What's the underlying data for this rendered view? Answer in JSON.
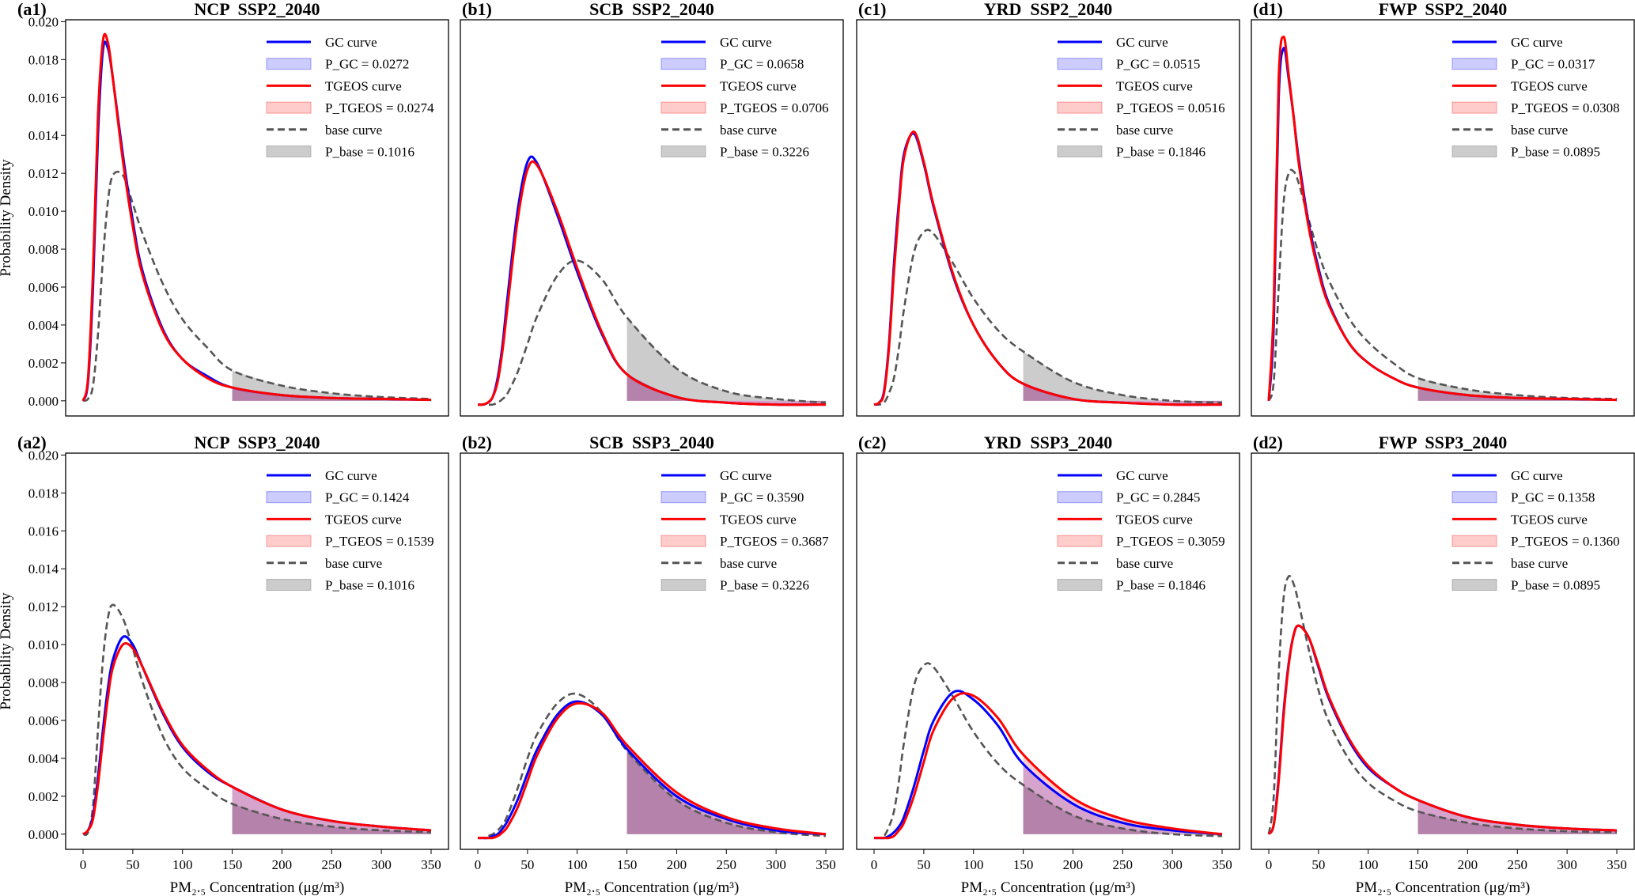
{
  "chart_data": [
    {
      "type": "line",
      "tag": "(a1)",
      "title": "NCP  SSP2_2040",
      "ylabel": "Probability Density",
      "x": [
        0,
        5,
        10,
        15,
        20,
        25,
        30,
        40,
        50,
        60,
        80,
        100,
        125,
        150,
        200,
        250,
        300,
        350
      ],
      "xlim": [
        -17.5,
        367.5
      ],
      "ylim": [
        -0.0008,
        0.0201
      ],
      "yticks": [
        {
          "value": 0,
          "label": "0.000"
        },
        {
          "value": 0.002,
          "label": "0.002"
        },
        {
          "value": 0.004,
          "label": "0.004"
        },
        {
          "value": 0.006,
          "label": "0.006"
        },
        {
          "value": 0.008,
          "label": "0.008"
        },
        {
          "value": 0.01,
          "label": "0.010"
        },
        {
          "value": 0.012,
          "label": "0.012"
        },
        {
          "value": 0.014,
          "label": "0.014"
        },
        {
          "value": 0.016,
          "label": "0.016"
        },
        {
          "value": 0.018,
          "label": "0.018"
        },
        {
          "value": 0.02,
          "label": "0.020"
        }
      ],
      "shade_xmin": 150,
      "series": [
        {
          "name": "GC curve",
          "area_label": "P_GC = 0.0272",
          "color": "#0000ff",
          "values": [
            0,
            0.001,
            0.006,
            0.014,
            0.0185,
            0.0186,
            0.017,
            0.013,
            0.0095,
            0.0068,
            0.0038,
            0.0022,
            0.0013,
            0.0007,
            0.0003,
            0.00015,
            0.0001,
            5e-05
          ]
        },
        {
          "name": "TGEOS curve",
          "area_label": "P_TGEOS = 0.0274",
          "color": "#ff0000",
          "values": [
            0,
            0.0012,
            0.0068,
            0.015,
            0.019,
            0.0189,
            0.017,
            0.0127,
            0.0092,
            0.0066,
            0.0037,
            0.0022,
            0.0012,
            0.0007,
            0.0003,
            0.00015,
            0.0001,
            5e-05
          ]
        },
        {
          "name": "base curve",
          "area_label": "P_base = 0.1016",
          "color": "#555555",
          "dashed": true,
          "values": [
            0,
            0.0001,
            0.0008,
            0.0035,
            0.0075,
            0.0105,
            0.0119,
            0.0119,
            0.0104,
            0.0088,
            0.0062,
            0.0043,
            0.0028,
            0.0016,
            0.0008,
            0.0004,
            0.0002,
            0.0001
          ]
        }
      ]
    },
    {
      "type": "line",
      "tag": "(b1)",
      "title": "SCB  SSP2_2040",
      "x": [
        0,
        5,
        10,
        15,
        20,
        25,
        30,
        40,
        50,
        60,
        80,
        100,
        125,
        150,
        200,
        250,
        300,
        350
      ],
      "xlim": [
        -17.5,
        367.5
      ],
      "ylim": [
        -0.0008,
        0.0201
      ],
      "shade_xmin": 150,
      "series": [
        {
          "name": "GC curve",
          "area_label": "P_GC = 0.0658",
          "color": "#0000ff",
          "values": [
            -0.0002,
            -0.0002,
            -0.0001,
            0.0002,
            0.0012,
            0.003,
            0.0055,
            0.01,
            0.0126,
            0.0125,
            0.0098,
            0.0068,
            0.0035,
            0.0014,
            0.0002,
            -0.0001,
            -0.0002,
            -0.0002
          ]
        },
        {
          "name": "TGEOS curve",
          "area_label": "P_TGEOS = 0.0706",
          "color": "#ff0000",
          "values": [
            -0.0002,
            -0.0002,
            -0.0001,
            0.0002,
            0.001,
            0.0027,
            0.005,
            0.0095,
            0.0122,
            0.0124,
            0.01,
            0.007,
            0.0036,
            0.0014,
            0.0002,
            -0.0001,
            -0.0002,
            -0.0002
          ]
        },
        {
          "name": "base curve",
          "area_label": "P_base = 0.3226",
          "color": "#555555",
          "dashed": true,
          "values": [
            -0.0002,
            -0.0002,
            -0.0002,
            -0.0002,
            -0.0001,
            0.0001,
            0.0004,
            0.0015,
            0.003,
            0.0045,
            0.0066,
            0.0074,
            0.0064,
            0.0044,
            0.0017,
            0.0005,
            0.0001,
            -0.0001
          ]
        }
      ]
    },
    {
      "type": "line",
      "tag": "(c1)",
      "title": "YRD  SSP2_2040",
      "x": [
        0,
        5,
        10,
        15,
        20,
        25,
        30,
        40,
        50,
        60,
        80,
        100,
        125,
        150,
        200,
        250,
        300,
        350
      ],
      "xlim": [
        -17.5,
        367.5
      ],
      "ylim": [
        -0.0008,
        0.0201
      ],
      "shade_xmin": 150,
      "series": [
        {
          "name": "GC curve",
          "area_label": "P_GC = 0.0515",
          "color": "#0000ff",
          "values": [
            -0.0002,
            -0.0001,
            0.0005,
            0.003,
            0.0072,
            0.0105,
            0.013,
            0.0141,
            0.0125,
            0.0102,
            0.0065,
            0.004,
            0.002,
            0.0009,
            0.0001,
            -0.0001,
            -0.0002,
            -0.0002
          ]
        },
        {
          "name": "TGEOS curve",
          "area_label": "P_TGEOS = 0.0516",
          "color": "#ff0000",
          "values": [
            -0.0002,
            -0.0001,
            0.0004,
            0.0028,
            0.0068,
            0.0102,
            0.0128,
            0.0142,
            0.0126,
            0.0103,
            0.0066,
            0.004,
            0.002,
            0.0009,
            0.0001,
            -0.0001,
            -0.0002,
            -0.0002
          ]
        },
        {
          "name": "base curve",
          "area_label": "P_base = 0.1846",
          "color": "#555555",
          "dashed": true,
          "values": [
            -0.0002,
            -0.0002,
            -0.0001,
            0.0004,
            0.0012,
            0.0028,
            0.0048,
            0.0078,
            0.0089,
            0.0088,
            0.0072,
            0.0054,
            0.0037,
            0.0026,
            0.001,
            0.0003,
            0,
            -0.0001
          ]
        }
      ]
    },
    {
      "type": "line",
      "tag": "(d1)",
      "title": "FWP  SSP2_2040",
      "x": [
        0,
        5,
        10,
        15,
        20,
        25,
        30,
        40,
        50,
        60,
        80,
        100,
        125,
        150,
        200,
        250,
        300,
        350
      ],
      "xlim": [
        -17.5,
        367.5
      ],
      "ylim": [
        -0.0008,
        0.0201
      ],
      "shade_xmin": 150,
      "series": [
        {
          "name": "GC curve",
          "area_label": "P_GC = 0.0317",
          "color": "#0000ff",
          "values": [
            0,
            0.004,
            0.016,
            0.0186,
            0.017,
            0.015,
            0.0128,
            0.0094,
            0.007,
            0.0052,
            0.0031,
            0.002,
            0.0012,
            0.0007,
            0.0003,
            0.00015,
            0.0001,
            5e-05
          ]
        },
        {
          "name": "TGEOS curve",
          "area_label": "P_TGEOS = 0.0308",
          "color": "#ff0000",
          "values": [
            0,
            0.005,
            0.017,
            0.0192,
            0.0172,
            0.015,
            0.0126,
            0.0092,
            0.0068,
            0.0051,
            0.0031,
            0.002,
            0.0012,
            0.0007,
            0.0003,
            0.00015,
            0.0001,
            5e-05
          ]
        },
        {
          "name": "base curve",
          "area_label": "P_base = 0.0895",
          "color": "#555555",
          "dashed": true,
          "values": [
            0,
            0.001,
            0.006,
            0.0105,
            0.012,
            0.0121,
            0.0115,
            0.0096,
            0.0078,
            0.0064,
            0.0044,
            0.0031,
            0.002,
            0.0012,
            0.0006,
            0.0003,
            0.00015,
            0.0001
          ]
        }
      ]
    },
    {
      "type": "line",
      "tag": "(a2)",
      "title": "NCP  SSP3_2040",
      "ylabel": "Probability Density",
      "xlabel": "PM₂.₅ Concentration (μg/m³)",
      "x": [
        0,
        5,
        10,
        15,
        20,
        25,
        30,
        40,
        50,
        60,
        80,
        100,
        125,
        150,
        200,
        250,
        300,
        350
      ],
      "xlim": [
        -17.5,
        367.5
      ],
      "ylim": [
        -0.0008,
        0.0201
      ],
      "xticks": [
        0,
        50,
        100,
        150,
        200,
        250,
        300,
        350
      ],
      "yticks": [
        {
          "value": 0,
          "label": "0.000"
        },
        {
          "value": 0.002,
          "label": "0.002"
        },
        {
          "value": 0.004,
          "label": "0.004"
        },
        {
          "value": 0.006,
          "label": "0.006"
        },
        {
          "value": 0.008,
          "label": "0.008"
        },
        {
          "value": 0.01,
          "label": "0.010"
        },
        {
          "value": 0.012,
          "label": "0.012"
        },
        {
          "value": 0.014,
          "label": "0.014"
        },
        {
          "value": 0.016,
          "label": "0.016"
        },
        {
          "value": 0.018,
          "label": "0.018"
        },
        {
          "value": 0.02,
          "label": "0.020"
        }
      ],
      "shade_xmin": 150,
      "series": [
        {
          "name": "GC curve",
          "area_label": "P_GC = 0.1424",
          "color": "#0000ff",
          "values": [
            0,
            0.0002,
            0.001,
            0.003,
            0.0055,
            0.0077,
            0.0092,
            0.0104,
            0.01,
            0.0088,
            0.0064,
            0.0046,
            0.0033,
            0.0025,
            0.0013,
            0.0007,
            0.0004,
            0.0002
          ]
        },
        {
          "name": "TGEOS curve",
          "area_label": "P_TGEOS = 0.1539",
          "color": "#ff0000",
          "values": [
            0,
            0.0002,
            0.0008,
            0.0026,
            0.005,
            0.0072,
            0.0088,
            0.01,
            0.0098,
            0.0088,
            0.0065,
            0.0047,
            0.0034,
            0.0025,
            0.0013,
            0.0007,
            0.0004,
            0.0002
          ]
        },
        {
          "name": "base curve",
          "area_label": "P_base = 0.1016",
          "color": "#555555",
          "dashed": true,
          "values": [
            0,
            0.0001,
            0.0015,
            0.0055,
            0.0092,
            0.0114,
            0.0121,
            0.0114,
            0.0098,
            0.008,
            0.0052,
            0.0035,
            0.0024,
            0.0016,
            0.0008,
            0.0004,
            0.0002,
            0.0001
          ]
        }
      ]
    },
    {
      "type": "line",
      "tag": "(b2)",
      "title": "SCB  SSP3_2040",
      "xlabel": "PM₂.₅ Concentration (μg/m³)",
      "x": [
        0,
        5,
        10,
        15,
        20,
        25,
        30,
        40,
        50,
        60,
        80,
        100,
        125,
        150,
        200,
        250,
        300,
        350
      ],
      "xlim": [
        -17.5,
        367.5
      ],
      "ylim": [
        -0.0008,
        0.0201
      ],
      "xticks": [
        0,
        50,
        100,
        150,
        200,
        250,
        300,
        350
      ],
      "shade_xmin": 150,
      "series": [
        {
          "name": "GC curve",
          "area_label": "P_GC = 0.3590",
          "color": "#0000ff",
          "values": [
            -0.0002,
            -0.0002,
            -0.0002,
            -0.0001,
            0,
            0.0003,
            0.0007,
            0.0018,
            0.0032,
            0.0045,
            0.0063,
            0.007,
            0.0063,
            0.0045,
            0.002,
            0.0008,
            0.0002,
            0
          ]
        },
        {
          "name": "TGEOS curve",
          "area_label": "P_TGEOS = 0.3687",
          "color": "#ff0000",
          "values": [
            -0.0002,
            -0.0002,
            -0.0002,
            -0.0002,
            -0.0001,
            0.0001,
            0.0004,
            0.0014,
            0.0028,
            0.0042,
            0.0061,
            0.0069,
            0.0064,
            0.0047,
            0.0022,
            0.0009,
            0.0003,
            0
          ]
        },
        {
          "name": "base curve",
          "area_label": "P_base = 0.3226",
          "color": "#555555",
          "dashed": true,
          "values": [
            -0.0002,
            -0.0002,
            -0.0001,
            0,
            0.0002,
            0.0005,
            0.001,
            0.0024,
            0.004,
            0.0053,
            0.0069,
            0.0074,
            0.0064,
            0.0044,
            0.0018,
            0.0006,
            0.0001,
            -0.0001
          ]
        }
      ]
    },
    {
      "type": "line",
      "tag": "(c2)",
      "title": "YRD  SSP3_2040",
      "xlabel": "PM₂.₅ Concentration (μg/m³)",
      "x": [
        0,
        5,
        10,
        15,
        20,
        25,
        30,
        40,
        50,
        60,
        80,
        100,
        125,
        150,
        200,
        250,
        300,
        350
      ],
      "xlim": [
        -17.5,
        367.5
      ],
      "ylim": [
        -0.0008,
        0.0201
      ],
      "xticks": [
        0,
        50,
        100,
        150,
        200,
        250,
        300,
        350
      ],
      "shade_xmin": 150,
      "series": [
        {
          "name": "GC curve",
          "area_label": "P_GC = 0.2845",
          "color": "#0000ff",
          "values": [
            -0.0002,
            -0.0002,
            -0.0002,
            -0.0001,
            0.0001,
            0.0004,
            0.0009,
            0.0025,
            0.0044,
            0.006,
            0.0075,
            0.0071,
            0.0057,
            0.0037,
            0.0016,
            0.0006,
            0.0002,
            0
          ]
        },
        {
          "name": "TGEOS curve",
          "area_label": "P_TGEOS = 0.3059",
          "color": "#ff0000",
          "values": [
            -0.0002,
            -0.0002,
            -0.0002,
            -0.0002,
            -0.0001,
            0.0002,
            0.0006,
            0.002,
            0.0038,
            0.0055,
            0.0072,
            0.0073,
            0.0061,
            0.0042,
            0.0019,
            0.0008,
            0.0003,
            0
          ]
        },
        {
          "name": "base curve",
          "area_label": "P_base = 0.1846",
          "color": "#555555",
          "dashed": true,
          "values": [
            -0.0002,
            -0.0002,
            -0.0001,
            0.0004,
            0.0012,
            0.0028,
            0.0048,
            0.0078,
            0.0089,
            0.0088,
            0.0072,
            0.0054,
            0.0037,
            0.0026,
            0.001,
            0.0003,
            0,
            -0.0001
          ]
        }
      ]
    },
    {
      "type": "line",
      "tag": "(d2)",
      "title": "FWP  SSP3_2040",
      "xlabel": "PM₂.₅ Concentration (μg/m³)",
      "x": [
        0,
        5,
        10,
        15,
        20,
        25,
        30,
        40,
        50,
        60,
        80,
        100,
        125,
        150,
        200,
        250,
        300,
        350
      ],
      "xlim": [
        -17.5,
        367.5
      ],
      "ylim": [
        -0.0008,
        0.0201
      ],
      "xticks": [
        0,
        50,
        100,
        150,
        200,
        250,
        300,
        350
      ],
      "shade_xmin": 150,
      "series": [
        {
          "name": "GC curve",
          "area_label": "P_GC = 0.1358",
          "color": "#0000ff",
          "values": [
            0,
            0.0005,
            0.003,
            0.0065,
            0.009,
            0.0105,
            0.011,
            0.0104,
            0.0088,
            0.0072,
            0.005,
            0.0035,
            0.0025,
            0.0018,
            0.0009,
            0.0005,
            0.0003,
            0.0002
          ]
        },
        {
          "name": "TGEOS curve",
          "area_label": "P_TGEOS = 0.1360",
          "color": "#ff0000",
          "values": [
            0,
            0.0005,
            0.0028,
            0.0063,
            0.0089,
            0.0105,
            0.011,
            0.0104,
            0.0089,
            0.0073,
            0.0051,
            0.0036,
            0.0025,
            0.0018,
            0.0009,
            0.0005,
            0.0003,
            0.0002
          ]
        },
        {
          "name": "base curve",
          "area_label": "P_base = 0.0895",
          "color": "#555555",
          "dashed": true,
          "values": [
            0,
            0.002,
            0.0085,
            0.0125,
            0.0136,
            0.0132,
            0.0122,
            0.0098,
            0.0076,
            0.006,
            0.004,
            0.0027,
            0.0018,
            0.0012,
            0.0006,
            0.0003,
            0.00015,
            0.0001
          ]
        }
      ]
    }
  ]
}
